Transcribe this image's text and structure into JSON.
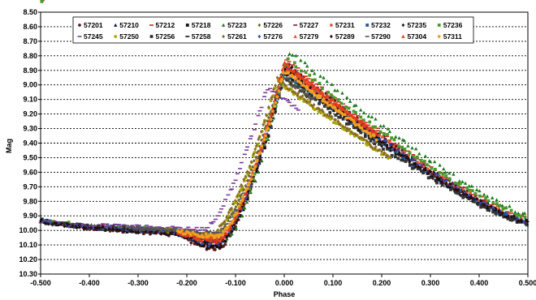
{
  "chart_data": {
    "type": "scatter",
    "xlabel": "Phase",
    "ylabel": "Mag",
    "xlim": [
      -0.5,
      0.5
    ],
    "ylim": [
      8.5,
      10.3
    ],
    "y_inverted": true,
    "x_ticks": [
      "-0.500",
      "-0.400",
      "-0.300",
      "-0.200",
      "-0.100",
      "0.000",
      "0.100",
      "0.200",
      "0.300",
      "0.400",
      "0.500"
    ],
    "y_ticks": [
      "8.50",
      "8.60",
      "8.70",
      "8.80",
      "8.90",
      "9.00",
      "9.10",
      "9.20",
      "9.30",
      "9.40",
      "9.50",
      "9.60",
      "9.70",
      "9.80",
      "9.90",
      "10.00",
      "10.10",
      "10.20",
      "10.30"
    ],
    "grid": "horizontal-dashed",
    "legend_position": "top-inside",
    "series": [
      {
        "name": "57201",
        "color": "#5a1e1e",
        "marker": "circle",
        "peak": 8.85,
        "min": 10.13,
        "base": 10.03,
        "rise": -0.215,
        "peakphase": 0.003,
        "shift": 0.0
      },
      {
        "name": "57210",
        "color": "#0a1a5c",
        "marker": "triangle",
        "peak": 8.86,
        "min": 10.1,
        "base": 10.02,
        "rise": -0.22,
        "peakphase": 0.0,
        "shift": 0.0
      },
      {
        "name": "57212",
        "color": "#d1281f",
        "marker": "dash",
        "peak": 8.83,
        "min": 10.05,
        "base": 10.0,
        "rise": -0.225,
        "peakphase": 0.0,
        "shift": 0.005
      },
      {
        "name": "57218",
        "color": "#111111",
        "marker": "square",
        "peak": 8.89,
        "min": 10.12,
        "base": 10.02,
        "rise": -0.215,
        "peakphase": 0.004,
        "shift": 0.0
      },
      {
        "name": "57223",
        "color": "#1e7a1e",
        "marker": "triangle",
        "peak": 8.77,
        "min": 10.06,
        "base": 10.01,
        "rise": -0.22,
        "peakphase": 0.002,
        "shift": 0.01
      },
      {
        "name": "57226",
        "color": "#6b6b2a",
        "marker": "diamond",
        "peak": 8.94,
        "min": 10.03,
        "base": 10.0,
        "rise": -0.225,
        "peakphase": -0.002,
        "shift": -0.005
      },
      {
        "name": "57227",
        "color": "#7a1a2a",
        "marker": "dash",
        "peak": 8.9,
        "min": 10.08,
        "base": 10.02,
        "rise": -0.22,
        "peakphase": 0.001,
        "shift": 0.0
      },
      {
        "name": "57231",
        "color": "#e05a3a",
        "marker": "circle",
        "peak": 8.86,
        "min": 10.06,
        "base": 10.01,
        "rise": -0.22,
        "peakphase": 0.002,
        "shift": 0.0
      },
      {
        "name": "57232",
        "color": "#1e5a9a",
        "marker": "square",
        "peak": 8.92,
        "min": 10.07,
        "base": 10.0,
        "rise": -0.215,
        "peakphase": 0.0,
        "shift": 0.0
      },
      {
        "name": "57235",
        "color": "#2a1a1a",
        "marker": "diamond",
        "peak": 8.93,
        "min": 10.09,
        "base": 10.02,
        "rise": -0.215,
        "peakphase": 0.0,
        "shift": 0.0
      },
      {
        "name": "57236",
        "color": "#4a9a2a",
        "marker": "square",
        "peak": 8.82,
        "min": 10.04,
        "base": 10.0,
        "rise": -0.225,
        "peakphase": 0.002,
        "shift": 0.005
      },
      {
        "name": "57245",
        "color": "#7a3a9a",
        "marker": "dash",
        "peak": 9.02,
        "min": 9.99,
        "base": 9.98,
        "rise": -0.24,
        "peakphase": -0.015,
        "shift": -0.02
      },
      {
        "name": "57250",
        "color": "#a8a800",
        "marker": "circle",
        "peak": 8.97,
        "min": 10.04,
        "base": 10.0,
        "rise": -0.225,
        "peakphase": -0.005,
        "shift": -0.01
      },
      {
        "name": "57256",
        "color": "#333333",
        "marker": "square",
        "peak": 8.95,
        "min": 10.06,
        "base": 10.01,
        "rise": -0.22,
        "peakphase": 0.0,
        "shift": 0.0
      },
      {
        "name": "57258",
        "color": "#111111",
        "marker": "dash",
        "peak": 8.91,
        "min": 10.08,
        "base": 10.02,
        "rise": -0.22,
        "peakphase": 0.0,
        "shift": 0.0
      },
      {
        "name": "57261",
        "color": "#8a6a2a",
        "marker": "diamond",
        "peak": 8.96,
        "min": 10.03,
        "base": 10.0,
        "rise": -0.23,
        "peakphase": -0.005,
        "shift": -0.01
      },
      {
        "name": "57276",
        "color": "#3a4aa8",
        "marker": "diamond",
        "peak": 8.88,
        "min": 10.1,
        "base": 10.02,
        "rise": -0.215,
        "peakphase": 0.002,
        "shift": 0.0
      },
      {
        "name": "57279",
        "color": "#e8502a",
        "marker": "triangle",
        "peak": 8.87,
        "min": 10.05,
        "base": 10.01,
        "rise": -0.22,
        "peakphase": 0.0,
        "shift": 0.0
      },
      {
        "name": "57289",
        "color": "#2a0a0a",
        "marker": "diamond",
        "peak": 8.89,
        "min": 10.11,
        "base": 10.02,
        "rise": -0.215,
        "peakphase": 0.0,
        "shift": 0.0
      },
      {
        "name": "57290",
        "color": "#555555",
        "marker": "dash",
        "peak": 8.94,
        "min": 10.02,
        "base": 10.0,
        "rise": -0.225,
        "peakphase": -0.003,
        "shift": 0.0
      },
      {
        "name": "57304",
        "color": "#e83a1a",
        "marker": "triangle",
        "peak": 8.85,
        "min": 10.07,
        "base": 10.01,
        "rise": -0.22,
        "peakphase": 0.0,
        "shift": 0.0
      },
      {
        "name": "57311",
        "color": "#f0a020",
        "marker": "circle",
        "peak": 8.9,
        "min": 10.04,
        "base": 10.0,
        "rise": -0.225,
        "peakphase": 0.0,
        "shift": 0.0
      }
    ]
  }
}
